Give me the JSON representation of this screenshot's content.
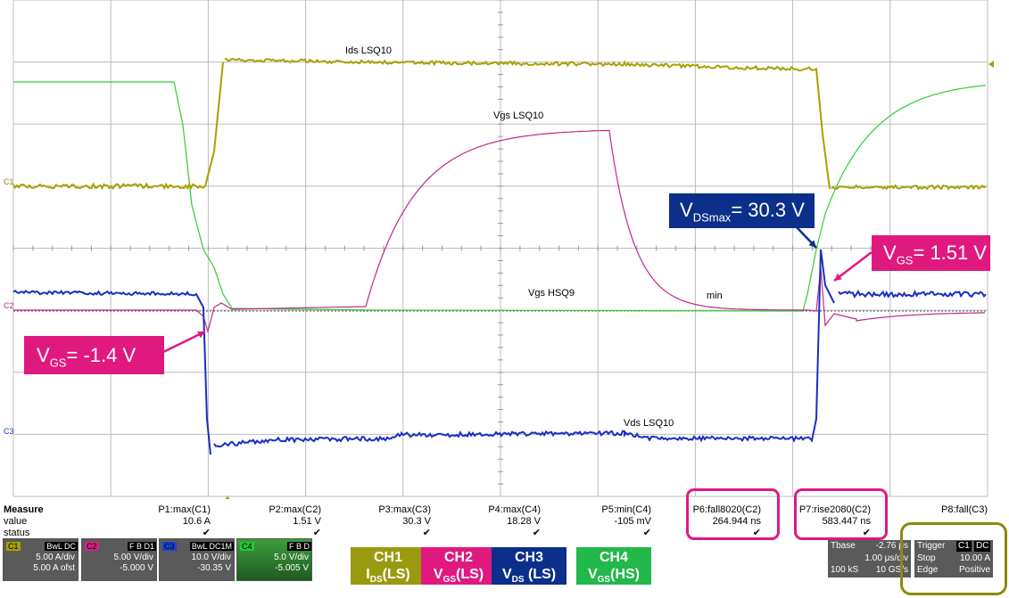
{
  "traces": {
    "ids": "Ids LSQ10",
    "vgs_ls": "Vgs LSQ10",
    "vgs_hs": "Vgs HSQ9",
    "vds": "Vds LSQ10",
    "min": "min"
  },
  "channel_markers": {
    "c1": "C1",
    "c2": "C2",
    "c3": "C3"
  },
  "callouts": {
    "vgs_neg": {
      "main": "V",
      "sub": "GS",
      "rest": "= -1.4 V"
    },
    "vds_max": {
      "main": "V",
      "sub": "DSmax",
      "rest": "= 30.3 V"
    },
    "vgs_pos": {
      "main": "V",
      "sub": "GS",
      "rest": "= 1.51 V"
    }
  },
  "measure": {
    "title": "Measure",
    "row_value": "value",
    "row_status": "status",
    "params": [
      {
        "name": "P1:max(C1)",
        "value": "10.6 A",
        "status": "✔"
      },
      {
        "name": "P2:max(C2)",
        "value": "1.51 V",
        "status": "✔"
      },
      {
        "name": "P3:max(C3)",
        "value": "30.3 V",
        "status": "✔"
      },
      {
        "name": "P4:max(C4)",
        "value": "18.28 V",
        "status": "✔"
      },
      {
        "name": "P5:min(C4)",
        "value": "-105 mV",
        "status": "✔"
      },
      {
        "name": "P6:fall8020(C2)",
        "value": "264.944 ns",
        "status": "✔"
      },
      {
        "name": "P7:rise2080(C2)",
        "value": "583.447 ns",
        "status": "✔"
      },
      {
        "name": "P8:fall(C3)",
        "value": "",
        "status": ""
      }
    ]
  },
  "channels": [
    {
      "id": "C1",
      "tags": "BwL DC",
      "vdiv": "5.00 A/div",
      "offset": "5.00 A ofst",
      "color": "#a8a000"
    },
    {
      "id": "C2",
      "tags": "F B D1",
      "vdiv": "5.00 V/div",
      "offset": "-5.000 V",
      "color": "#d4228a"
    },
    {
      "id": "C3",
      "tags": "BwL DC1M",
      "vdiv": "10.0 V/div",
      "offset": "-30.35 V",
      "color": "#1a3fd0"
    },
    {
      "id": "C4",
      "tags": "F B D",
      "vdiv": "5.0 V/div",
      "offset": "-5.005 V",
      "color": "#22c43a"
    }
  ],
  "legend": [
    {
      "top": "CH1",
      "main": "I",
      "sub": "DS",
      "rest": "(LS)",
      "color": "#9a9a10"
    },
    {
      "top": "CH2",
      "main": "V",
      "sub": "GS",
      "rest": "(LS)",
      "color": "#e0197f"
    },
    {
      "top": "CH3",
      "main": "V",
      "sub": "DS",
      "rest": " (LS)",
      "color": "#0b2f8a"
    },
    {
      "top": "CH4",
      "main": "V",
      "sub": "GS",
      "rest": "(HS)",
      "color": "#22b84a"
    }
  ],
  "timebase": {
    "label": "Tbase",
    "offset": "-2.76 μs",
    "div": "1.00 μs/div",
    "samples": "100 kS",
    "rate": "10 GS/s"
  },
  "trigger": {
    "label": "Trigger",
    "ch": "C1",
    "coupling": "DC",
    "mode": "Stop",
    "level": "10.00 A",
    "type": "Edge",
    "slope": "Positive"
  },
  "colors": {
    "ch1": "#a8a000",
    "ch2": "#c0288a",
    "ch3": "#1a2fc0",
    "ch4": "#33cc33",
    "accent": "#e0197f",
    "trigger_box": "#8a8a10"
  }
}
